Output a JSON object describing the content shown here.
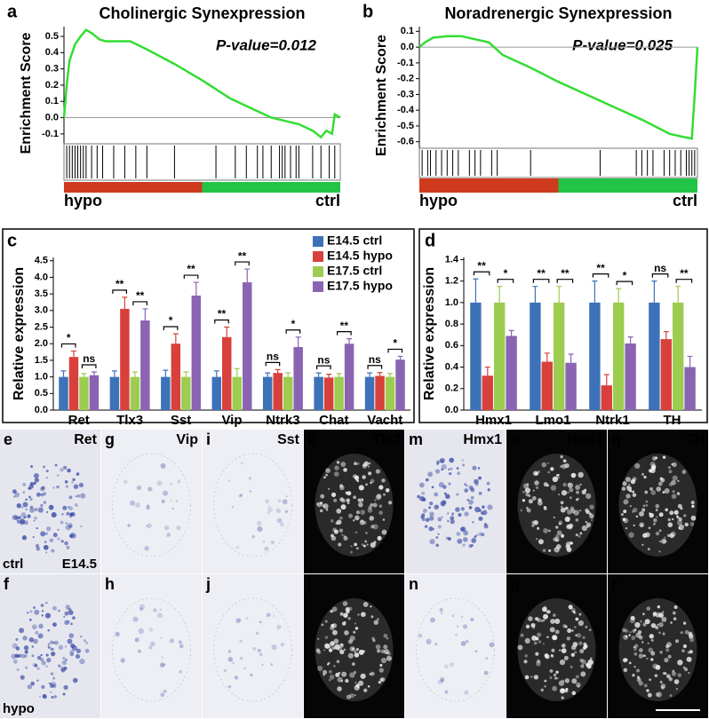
{
  "chart_data": [
    {
      "type": "gsea",
      "label": "a",
      "title": "Cholinergic Synexpression",
      "annotation": "P-value=0.012",
      "y_label": "Enrichment Score",
      "left_label": "hypo",
      "right_label": "ctrl",
      "color": "#33dd33",
      "xlim": [
        0,
        100
      ],
      "ylim": [
        -0.15,
        0.56
      ],
      "yticks": [
        {
          "value": 0.5,
          "label": "0.5"
        },
        {
          "value": 0.4,
          "label": "0.4"
        },
        {
          "value": 0.3,
          "label": "0.3"
        },
        {
          "value": 0.2,
          "label": "0.2"
        },
        {
          "value": 0.1,
          "label": "0.1"
        },
        {
          "value": 0,
          "label": "0.0"
        },
        {
          "value": -0.1,
          "label": "-0.1"
        }
      ],
      "x": [
        0,
        1,
        2,
        4,
        6,
        8,
        10,
        13,
        15,
        20,
        24,
        30,
        40,
        50,
        60,
        70,
        75,
        80,
        85,
        90,
        93,
        95,
        97,
        98,
        100
      ],
      "values": [
        0,
        0.2,
        0.35,
        0.45,
        0.5,
        0.54,
        0.52,
        0.48,
        0.47,
        0.47,
        0.47,
        0.42,
        0.33,
        0.23,
        0.12,
        0.04,
        0,
        -0.02,
        -0.04,
        -0.08,
        -0.12,
        -0.08,
        -0.1,
        0.02,
        0
      ],
      "hits": [
        1,
        2,
        3,
        4,
        5,
        6,
        7,
        8,
        10,
        12,
        14,
        18,
        22,
        26,
        30,
        40,
        55,
        62,
        66,
        70,
        72,
        75,
        78,
        79,
        80,
        82,
        84,
        85,
        90,
        93,
        96,
        98
      ]
    },
    {
      "type": "gsea",
      "label": "b",
      "title": "Noradrenergic Synexpression",
      "annotation": "P-value=0.025",
      "y_label": "Enrichment Score",
      "left_label": "hypo",
      "right_label": "ctrl",
      "color": "#33dd33",
      "xlim": [
        0,
        100
      ],
      "ylim": [
        -0.63,
        0.13
      ],
      "yticks": [
        {
          "value": 0.1,
          "label": "0.1"
        },
        {
          "value": 0,
          "label": "0.0"
        },
        {
          "value": -0.1,
          "label": "-0.1"
        },
        {
          "value": -0.2,
          "label": "-0.2"
        },
        {
          "value": -0.3,
          "label": "-0.3"
        },
        {
          "value": -0.4,
          "label": "-0.4"
        },
        {
          "value": -0.5,
          "label": "-0.5"
        },
        {
          "value": -0.6,
          "label": "-0.6"
        }
      ],
      "x": [
        0,
        2,
        5,
        10,
        15,
        20,
        25,
        30,
        40,
        50,
        60,
        70,
        80,
        90,
        95,
        98,
        99,
        100
      ],
      "values": [
        0,
        0.03,
        0.06,
        0.07,
        0.07,
        0.05,
        0.03,
        -0.05,
        -0.13,
        -0.22,
        -0.3,
        -0.38,
        -0.46,
        -0.55,
        -0.57,
        -0.58,
        -0.3,
        0
      ],
      "hits": [
        1,
        3,
        4,
        6,
        8,
        10,
        12,
        14,
        18,
        20,
        22,
        26,
        28,
        40,
        65,
        78,
        80,
        82,
        84,
        88,
        90,
        92,
        94,
        96,
        97,
        98,
        99
      ]
    },
    {
      "type": "bar",
      "label": "c",
      "y_label": "Relative expression",
      "categories": [
        "Ret",
        "Tlx3",
        "Sst",
        "Vip",
        "Ntrk3",
        "Chat",
        "Vacht"
      ],
      "ylim": [
        0,
        4.6
      ],
      "yticks": [
        {
          "value": 0,
          "label": "0.0"
        },
        {
          "value": 0.5,
          "label": "0.5"
        },
        {
          "value": 1,
          "label": "1.0"
        },
        {
          "value": 1.5,
          "label": "1.5"
        },
        {
          "value": 2,
          "label": "2.0"
        },
        {
          "value": 2.5,
          "label": "2.5"
        },
        {
          "value": 3,
          "label": "3.0"
        },
        {
          "value": 3.5,
          "label": "3.5"
        },
        {
          "value": 4,
          "label": "4.0"
        },
        {
          "value": 4.5,
          "label": "4.5"
        }
      ],
      "series": [
        {
          "name": "E14.5 ctrl",
          "color": "#3d72b8",
          "values": [
            1,
            1,
            1,
            1,
            1,
            1,
            1
          ],
          "errors": [
            0.18,
            0.18,
            0.2,
            0.18,
            0.12,
            0.12,
            0.12
          ]
        },
        {
          "name": "E14.5 hypo",
          "color": "#d8413b",
          "values": [
            1.6,
            3.05,
            2.0,
            2.2,
            1.12,
            0.98,
            1.03
          ],
          "errors": [
            0.18,
            0.35,
            0.3,
            0.3,
            0.1,
            0.1,
            0.1
          ]
        },
        {
          "name": "E17.5 ctrl",
          "color": "#9ccc50",
          "values": [
            1,
            1,
            1,
            1,
            1,
            1,
            1
          ],
          "errors": [
            0.1,
            0.15,
            0.15,
            0.25,
            0.12,
            0.1,
            0.1
          ]
        },
        {
          "name": "E17.5 hypo",
          "color": "#8a64b2",
          "values": [
            1.05,
            2.7,
            3.45,
            3.85,
            1.9,
            2.0,
            1.52
          ],
          "errors": [
            0.1,
            0.35,
            0.4,
            0.4,
            0.3,
            0.15,
            0.1
          ]
        }
      ],
      "significance": [
        [
          "*",
          "ns"
        ],
        [
          "**",
          "**"
        ],
        [
          "*",
          "**"
        ],
        [
          "**",
          "**"
        ],
        [
          "ns",
          "*"
        ],
        [
          "ns",
          "**"
        ],
        [
          "ns",
          "*"
        ]
      ]
    },
    {
      "type": "bar",
      "label": "d",
      "y_label": "Relative expression",
      "categories": [
        "Hmx1",
        "Lmo1",
        "Ntrk1",
        "TH"
      ],
      "ylim": [
        0,
        1.42
      ],
      "yticks": [
        {
          "value": 0,
          "label": "0.0"
        },
        {
          "value": 0.2,
          "label": "0.2"
        },
        {
          "value": 0.4,
          "label": "0.4"
        },
        {
          "value": 0.6,
          "label": "0.6"
        },
        {
          "value": 0.8,
          "label": "0.8"
        },
        {
          "value": 1,
          "label": "1.0"
        },
        {
          "value": 1.2,
          "label": "1.2"
        },
        {
          "value": 1.4,
          "label": "1.4"
        }
      ],
      "series": [
        {
          "color": "#3d72b8",
          "values": [
            1,
            1,
            1,
            1
          ],
          "errors": [
            0.22,
            0.15,
            0.2,
            0.2
          ]
        },
        {
          "color": "#d8413b",
          "values": [
            0.32,
            0.45,
            0.23,
            0.66
          ],
          "errors": [
            0.08,
            0.08,
            0.1,
            0.07
          ]
        },
        {
          "color": "#9ccc50",
          "values": [
            1,
            1,
            1,
            1
          ],
          "errors": [
            0.15,
            0.15,
            0.13,
            0.15
          ]
        },
        {
          "color": "#8a64b2",
          "values": [
            0.69,
            0.44,
            0.62,
            0.4
          ],
          "errors": [
            0.05,
            0.08,
            0.06,
            0.1
          ]
        }
      ],
      "significance": [
        [
          "**",
          "*"
        ],
        [
          "**",
          "**"
        ],
        [
          "**",
          "*"
        ],
        [
          "ns",
          "**"
        ]
      ]
    }
  ],
  "image_panels": [
    {
      "label": "e",
      "marker": "Ret",
      "stain": "ish",
      "notes": [
        "ctrl",
        "E14.5"
      ]
    },
    {
      "label": "f",
      "stain": "ish",
      "notes": [
        "hypo"
      ]
    },
    {
      "label": "g",
      "marker": "Vip",
      "stain": "ish-faint"
    },
    {
      "label": "h",
      "stain": "ish-faint"
    },
    {
      "label": "i",
      "marker": "Sst",
      "stain": "ish-faint"
    },
    {
      "label": "j",
      "stain": "ish-faint"
    },
    {
      "label": "k",
      "marker": "Tlx3",
      "stain": "fluor"
    },
    {
      "label": "l",
      "stain": "fluor"
    },
    {
      "label": "m",
      "marker": "Hmx1",
      "stain": "ish"
    },
    {
      "label": "n",
      "stain": "ish-faint"
    },
    {
      "label": "o",
      "marker": "Ntrk1",
      "stain": "fluor"
    },
    {
      "label": "p",
      "stain": "fluor"
    },
    {
      "label": "q",
      "marker": "TH",
      "stain": "fluor"
    },
    {
      "label": "r",
      "stain": "fluor"
    }
  ]
}
